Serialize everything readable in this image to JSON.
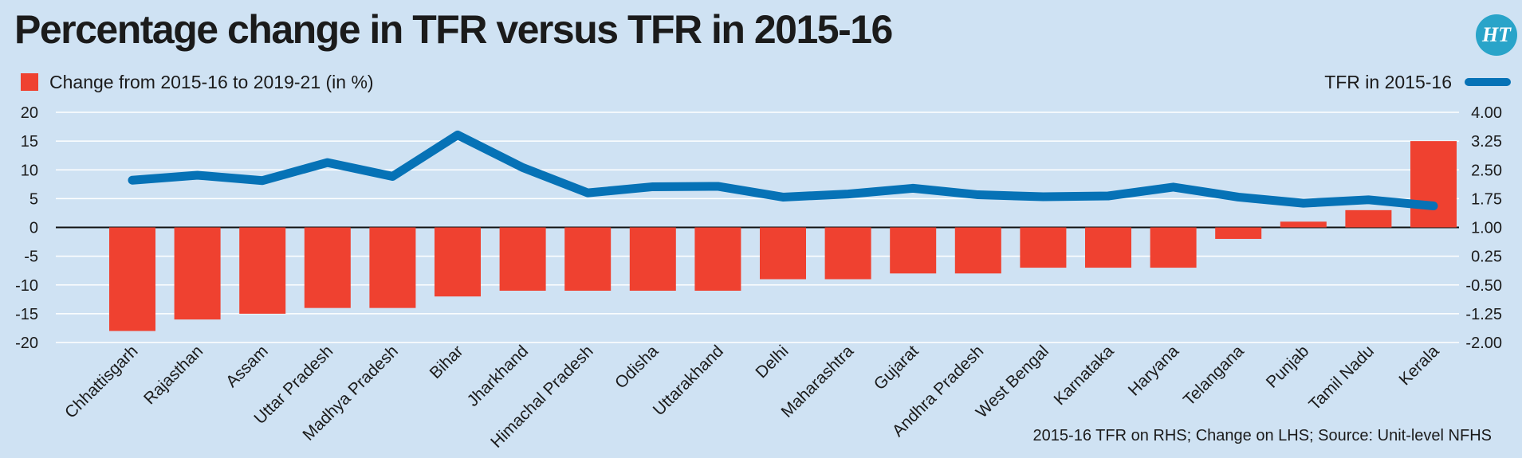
{
  "title": "Percentage change in TFR versus TFR in 2015-16",
  "logo_text": "HT",
  "legend": {
    "bars_label": "Change from 2015-16 to 2019-21 (in %)",
    "line_label": "TFR in 2015-16"
  },
  "source": "2015-16 TFR on RHS; Change on LHS; Source: Unit-level NFHS",
  "colors": {
    "bar": "#ef4130",
    "line": "#0672b6",
    "background": "#cfe2f3"
  },
  "chart_data": {
    "type": "bar+line",
    "categories": [
      "Chhattisgarh",
      "Rajasthan",
      "Assam",
      "Uttar Pradesh",
      "Madhya Pradesh",
      "Bihar",
      "Jharkhand",
      "Himachal Pradesh",
      "Odisha",
      "Uttarakhand",
      "Delhi",
      "Maharashtra",
      "Gujarat",
      "Andhra Pradesh",
      "West Bengal",
      "Karnataka",
      "Haryana",
      "Telangana",
      "Punjab",
      "Tamil Nadu",
      "Kerala"
    ],
    "series": [
      {
        "name": "Change from 2015-16 to 2019-21 (in %)",
        "axis": "left",
        "type": "bar",
        "values": [
          -18,
          -16,
          -15,
          -14,
          -14,
          -12,
          -11,
          -11,
          -11,
          -11,
          -9,
          -9,
          -8,
          -8,
          -7,
          -7,
          -7,
          -2,
          1,
          3,
          15
        ]
      },
      {
        "name": "TFR in 2015-16",
        "axis": "right",
        "type": "line",
        "values": [
          2.23,
          2.36,
          2.22,
          2.69,
          2.33,
          3.41,
          2.56,
          1.9,
          2.06,
          2.07,
          1.79,
          1.87,
          2.02,
          1.85,
          1.8,
          1.82,
          2.05,
          1.79,
          1.63,
          1.72,
          1.56
        ]
      }
    ],
    "left_axis": {
      "ticks": [
        "20",
        "15",
        "10",
        "5",
        "0",
        "-5",
        "-10",
        "-15",
        "-20"
      ],
      "ylim": [
        -20,
        20
      ]
    },
    "right_axis": {
      "ticks": [
        "4.00",
        "3.25",
        "2.50",
        "1.75",
        "1.00",
        "0.25",
        "-0.50",
        "-1.25",
        "-2.00"
      ],
      "ylim": [
        -2,
        4
      ]
    },
    "grid": true
  }
}
